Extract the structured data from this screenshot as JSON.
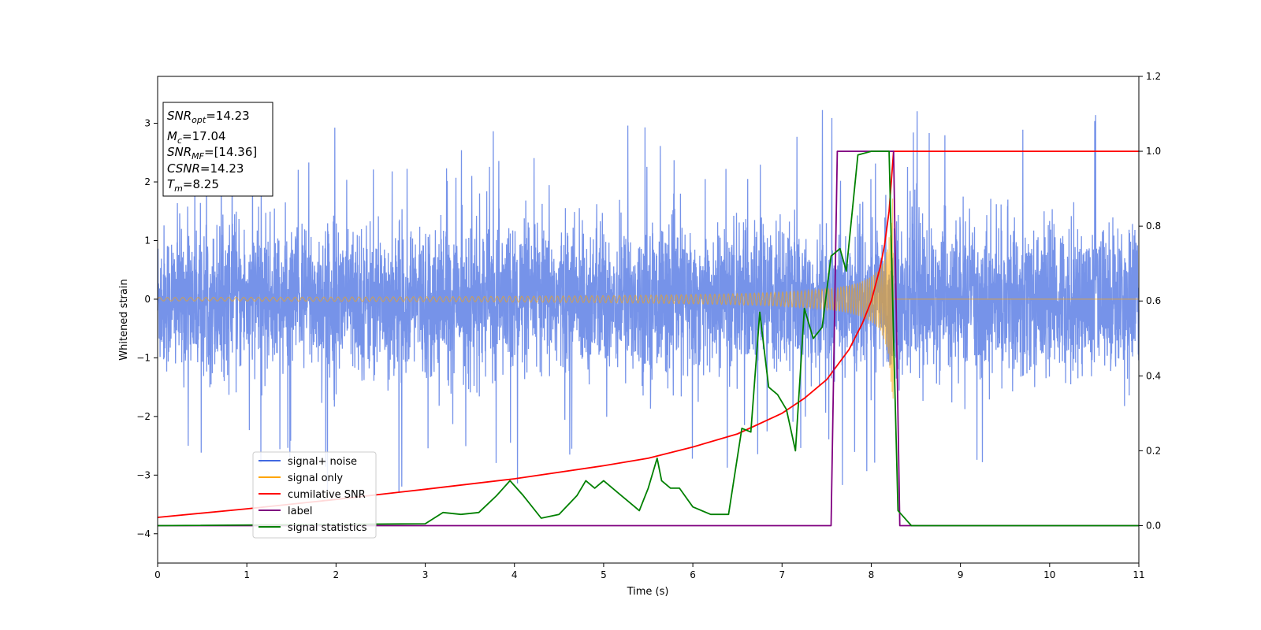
{
  "chart_data": {
    "type": "line",
    "xlabel": "Time (s)",
    "ylabel": "Whitened strain",
    "xlim": [
      0,
      11
    ],
    "ylim_left": [
      -4.5,
      3.8
    ],
    "ylim_right": [
      -0.1,
      1.2
    ],
    "x_ticks": [
      0,
      1,
      2,
      3,
      4,
      5,
      6,
      7,
      8,
      9,
      10,
      11
    ],
    "y_ticks_left": [
      -4,
      -3,
      -2,
      -1,
      0,
      1,
      2,
      3
    ],
    "y_ticks_right": [
      0.0,
      0.2,
      0.4,
      0.6,
      0.8,
      1.0,
      1.2
    ],
    "y_tick_labels_left": [
      "−4",
      "−3",
      "−2",
      "−1",
      "0",
      "1",
      "2",
      "3"
    ],
    "y_tick_labels_right": [
      "0.0",
      "0.2",
      "0.4",
      "0.6",
      "0.8",
      "1.0",
      "1.2"
    ],
    "grid": false,
    "legend_position": "lower-left",
    "info_box": {
      "snr_opt_base": "SNR",
      "snr_opt_sub": "opt",
      "snr_opt_value": "=14.23",
      "mc_base": "M",
      "mc_sub": "c",
      "mc_value": "=17.04",
      "snr_mf_base": "SNR",
      "snr_mf_sub": "MF",
      "snr_mf_value": "=[14.36]",
      "csnr_base": "CSNR",
      "csnr_value": "=14.23",
      "tm_base": "T",
      "tm_sub": "m",
      "tm_value": "=8.25"
    },
    "series": [
      {
        "name": "signal+ noise",
        "axis": "left",
        "color": "#4169e1",
        "description_values": {
          "amplitude_typical": 1.5,
          "amplitude_peak": 3.45
        }
      },
      {
        "name": "signal only",
        "axis": "left",
        "color": "#ffa500",
        "chirp": {
          "start": 0,
          "merger": 8.25,
          "amplitude_start": 0.03,
          "amplitude_peak": 1.8
        }
      },
      {
        "name": "cumilative SNR",
        "axis": "right",
        "color": "#ff0000",
        "x": [
          0,
          1,
          2,
          3,
          4,
          5,
          5.5,
          6,
          6.5,
          7,
          7.25,
          7.5,
          7.75,
          7.9,
          8.0,
          8.1,
          8.15,
          8.2,
          8.25,
          11
        ],
        "values": [
          0.022,
          0.045,
          0.07,
          0.097,
          0.125,
          0.16,
          0.18,
          0.21,
          0.245,
          0.3,
          0.34,
          0.39,
          0.47,
          0.54,
          0.6,
          0.69,
          0.75,
          0.84,
          1.0,
          1.0
        ]
      },
      {
        "name": "label",
        "axis": "right",
        "color": "#800080",
        "x": [
          0,
          7.55,
          7.62,
          8.25,
          8.32,
          11
        ],
        "values": [
          0.0,
          0.0,
          1.0,
          1.0,
          0.0,
          0.0
        ]
      },
      {
        "name": "signal statistics",
        "axis": "right",
        "color": "#008000",
        "x": [
          0,
          3.0,
          3.2,
          3.4,
          3.6,
          3.8,
          3.95,
          4.1,
          4.3,
          4.5,
          4.7,
          4.8,
          4.9,
          5.0,
          5.1,
          5.2,
          5.4,
          5.5,
          5.6,
          5.65,
          5.75,
          5.85,
          6.0,
          6.2,
          6.4,
          6.55,
          6.65,
          6.75,
          6.85,
          6.95,
          7.05,
          7.15,
          7.25,
          7.35,
          7.45,
          7.55,
          7.65,
          7.72,
          7.85,
          8.0,
          8.2,
          8.25,
          8.3,
          8.45,
          11
        ],
        "values": [
          0.0,
          0.005,
          0.035,
          0.03,
          0.035,
          0.08,
          0.12,
          0.08,
          0.02,
          0.03,
          0.08,
          0.12,
          0.1,
          0.12,
          0.1,
          0.08,
          0.04,
          0.1,
          0.18,
          0.12,
          0.1,
          0.1,
          0.05,
          0.03,
          0.03,
          0.26,
          0.25,
          0.57,
          0.37,
          0.35,
          0.31,
          0.2,
          0.58,
          0.5,
          0.53,
          0.72,
          0.74,
          0.68,
          0.99,
          1.0,
          1.0,
          0.5,
          0.04,
          0.0,
          0.0
        ]
      }
    ]
  }
}
